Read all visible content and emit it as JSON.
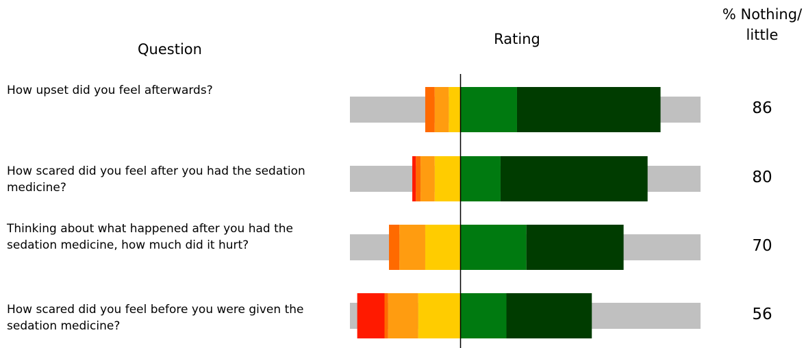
{
  "chart_data": {
    "type": "diverging_bar",
    "question_header": "Question",
    "rating_header": "Rating",
    "percent_header": "% Nothing/ little",
    "categories": [
      "How upset did you feel afterwards?",
      "How scared did you feel after you had the sedation medicine?",
      "Thinking about what happened after you had the sedation medicine, how much did it hurt?",
      "How scared did you feel before you were given the sedation medicine?"
    ],
    "percent_values": [
      86,
      80,
      70,
      56
    ],
    "xlim": [
      -47,
      102
    ],
    "background_color": "#c0c0c0",
    "series": [
      {
        "color": "#ff1a00",
        "direction": "left",
        "values": [
          0,
          1.5,
          0,
          11.6
        ]
      },
      {
        "color": "#ff6a00",
        "direction": "left",
        "values": [
          4,
          2,
          4.4,
          1.5
        ]
      },
      {
        "color": "#ff9c10",
        "direction": "left",
        "values": [
          6,
          6,
          11,
          12.8
        ]
      },
      {
        "color": "#ffcc00",
        "direction": "left",
        "values": [
          5,
          11,
          15,
          18
        ]
      },
      {
        "color": "#007a10",
        "direction": "right",
        "values": [
          24,
          17,
          28,
          19.5
        ]
      },
      {
        "color": "#003c00",
        "direction": "right",
        "values": [
          61,
          62.5,
          41.3,
          36.3
        ]
      }
    ]
  }
}
